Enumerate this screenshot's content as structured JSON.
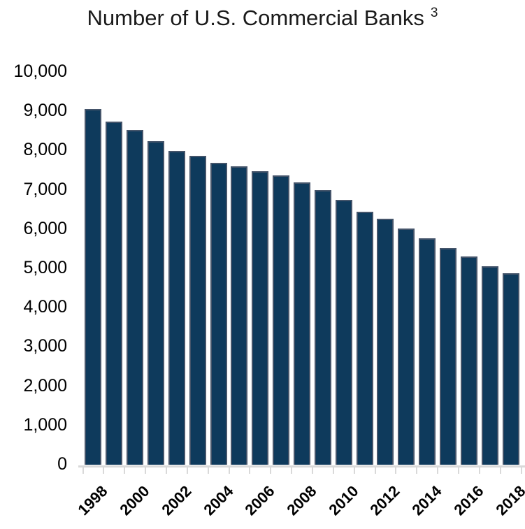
{
  "title": {
    "text": "Number of U.S. Commercial Banks",
    "superscript": "3"
  },
  "chart_data": {
    "type": "bar",
    "title": "Number of U.S. Commercial Banks 3",
    "categories": [
      "1998",
      "1999",
      "2000",
      "2001",
      "2002",
      "2003",
      "2004",
      "2005",
      "2006",
      "2007",
      "2008",
      "2009",
      "2010",
      "2011",
      "2012",
      "2013",
      "2014",
      "2015",
      "2016",
      "2017",
      "2018"
    ],
    "values": [
      9050,
      8740,
      8530,
      8240,
      7990,
      7860,
      7690,
      7600,
      7470,
      7370,
      7190,
      7000,
      6740,
      6450,
      6270,
      6010,
      5760,
      5520,
      5310,
      5060,
      4880
    ],
    "xlabel": "",
    "ylabel": "",
    "ylim": [
      0,
      10000
    ],
    "ytick_interval": 1000,
    "ytick_labels": [
      "0",
      "1,000",
      "2,000",
      "3,000",
      "4,000",
      "5,000",
      "6,000",
      "7,000",
      "8,000",
      "9,000",
      "10,000"
    ],
    "xtick_labels_shown": [
      "1998",
      "2000",
      "2002",
      "2004",
      "2006",
      "2008",
      "2010",
      "2012",
      "2014",
      "2016",
      "2018"
    ],
    "xtick_shown_every": 2,
    "grid": false,
    "legend": null,
    "colors": {
      "bar_fill": "#0e3a5c",
      "bar_border": "#44546a",
      "axis_line": "#d9d9d9",
      "text": "#000000",
      "title_text": "#1a1a1a"
    }
  }
}
